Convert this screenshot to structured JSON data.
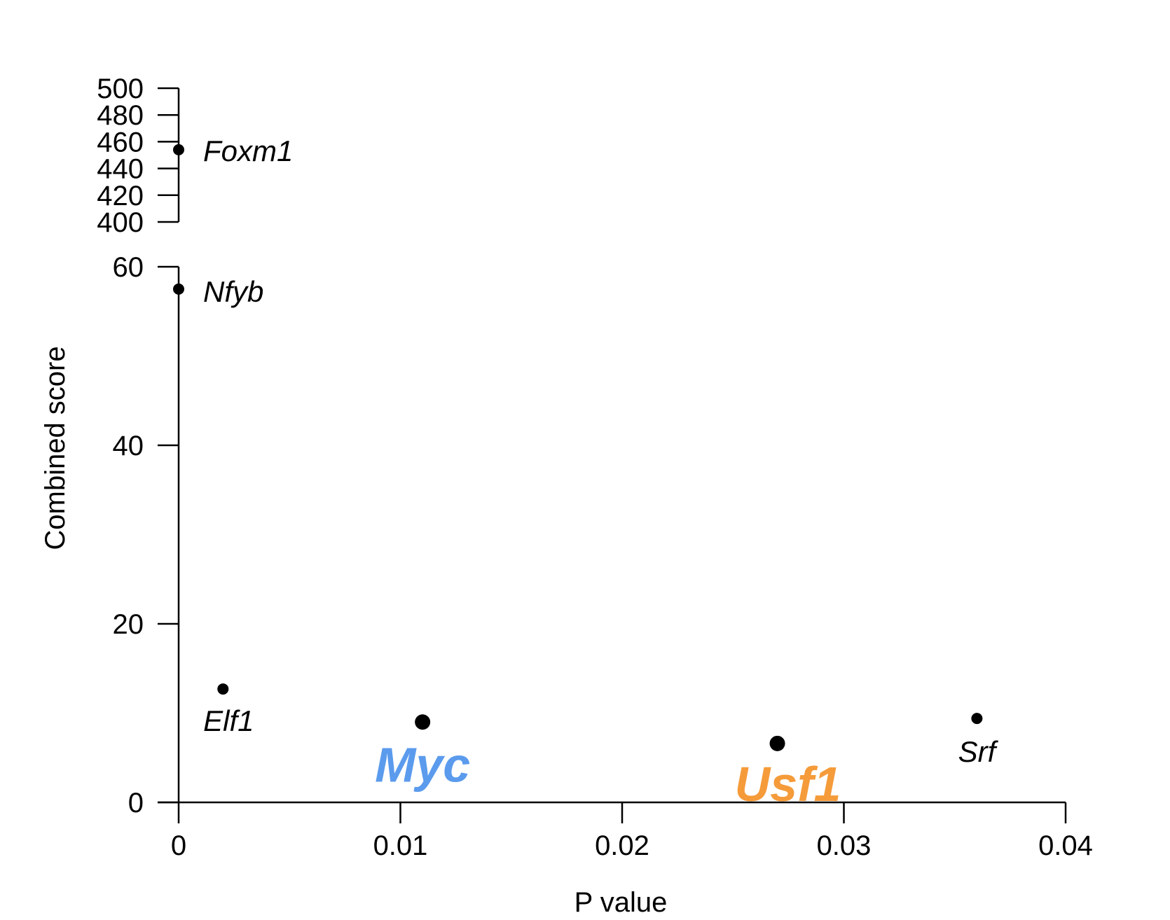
{
  "chart_data": {
    "type": "scatter",
    "xlabel": "P value",
    "ylabel": "Combined score",
    "xlim": [
      0,
      0.04
    ],
    "x_ticks": [
      "0",
      "0.01",
      "0.02",
      "0.03",
      "0.04"
    ],
    "y_axis_broken": true,
    "y_lower_range": [
      0,
      60
    ],
    "y_lower_ticks": [
      "0",
      "20",
      "40",
      "60"
    ],
    "y_upper_range": [
      400,
      500
    ],
    "y_upper_ticks": [
      "400",
      "420",
      "440",
      "460",
      "480",
      "500"
    ],
    "points": [
      {
        "label": "Foxm1",
        "x": 0.0,
        "y": 454,
        "highlight": false,
        "color": "#000000"
      },
      {
        "label": "Nfyb",
        "x": 0.0,
        "y": 57.5,
        "highlight": false,
        "color": "#000000"
      },
      {
        "label": "Elf1",
        "x": 0.002,
        "y": 12.7,
        "highlight": false,
        "color": "#000000"
      },
      {
        "label": "Myc",
        "x": 0.011,
        "y": 9.0,
        "highlight": true,
        "color": "#5b9bed"
      },
      {
        "label": "Usf1",
        "x": 0.027,
        "y": 6.6,
        "highlight": true,
        "color": "#f59b3a"
      },
      {
        "label": "Srf",
        "x": 0.036,
        "y": 9.4,
        "highlight": false,
        "color": "#000000"
      }
    ]
  }
}
